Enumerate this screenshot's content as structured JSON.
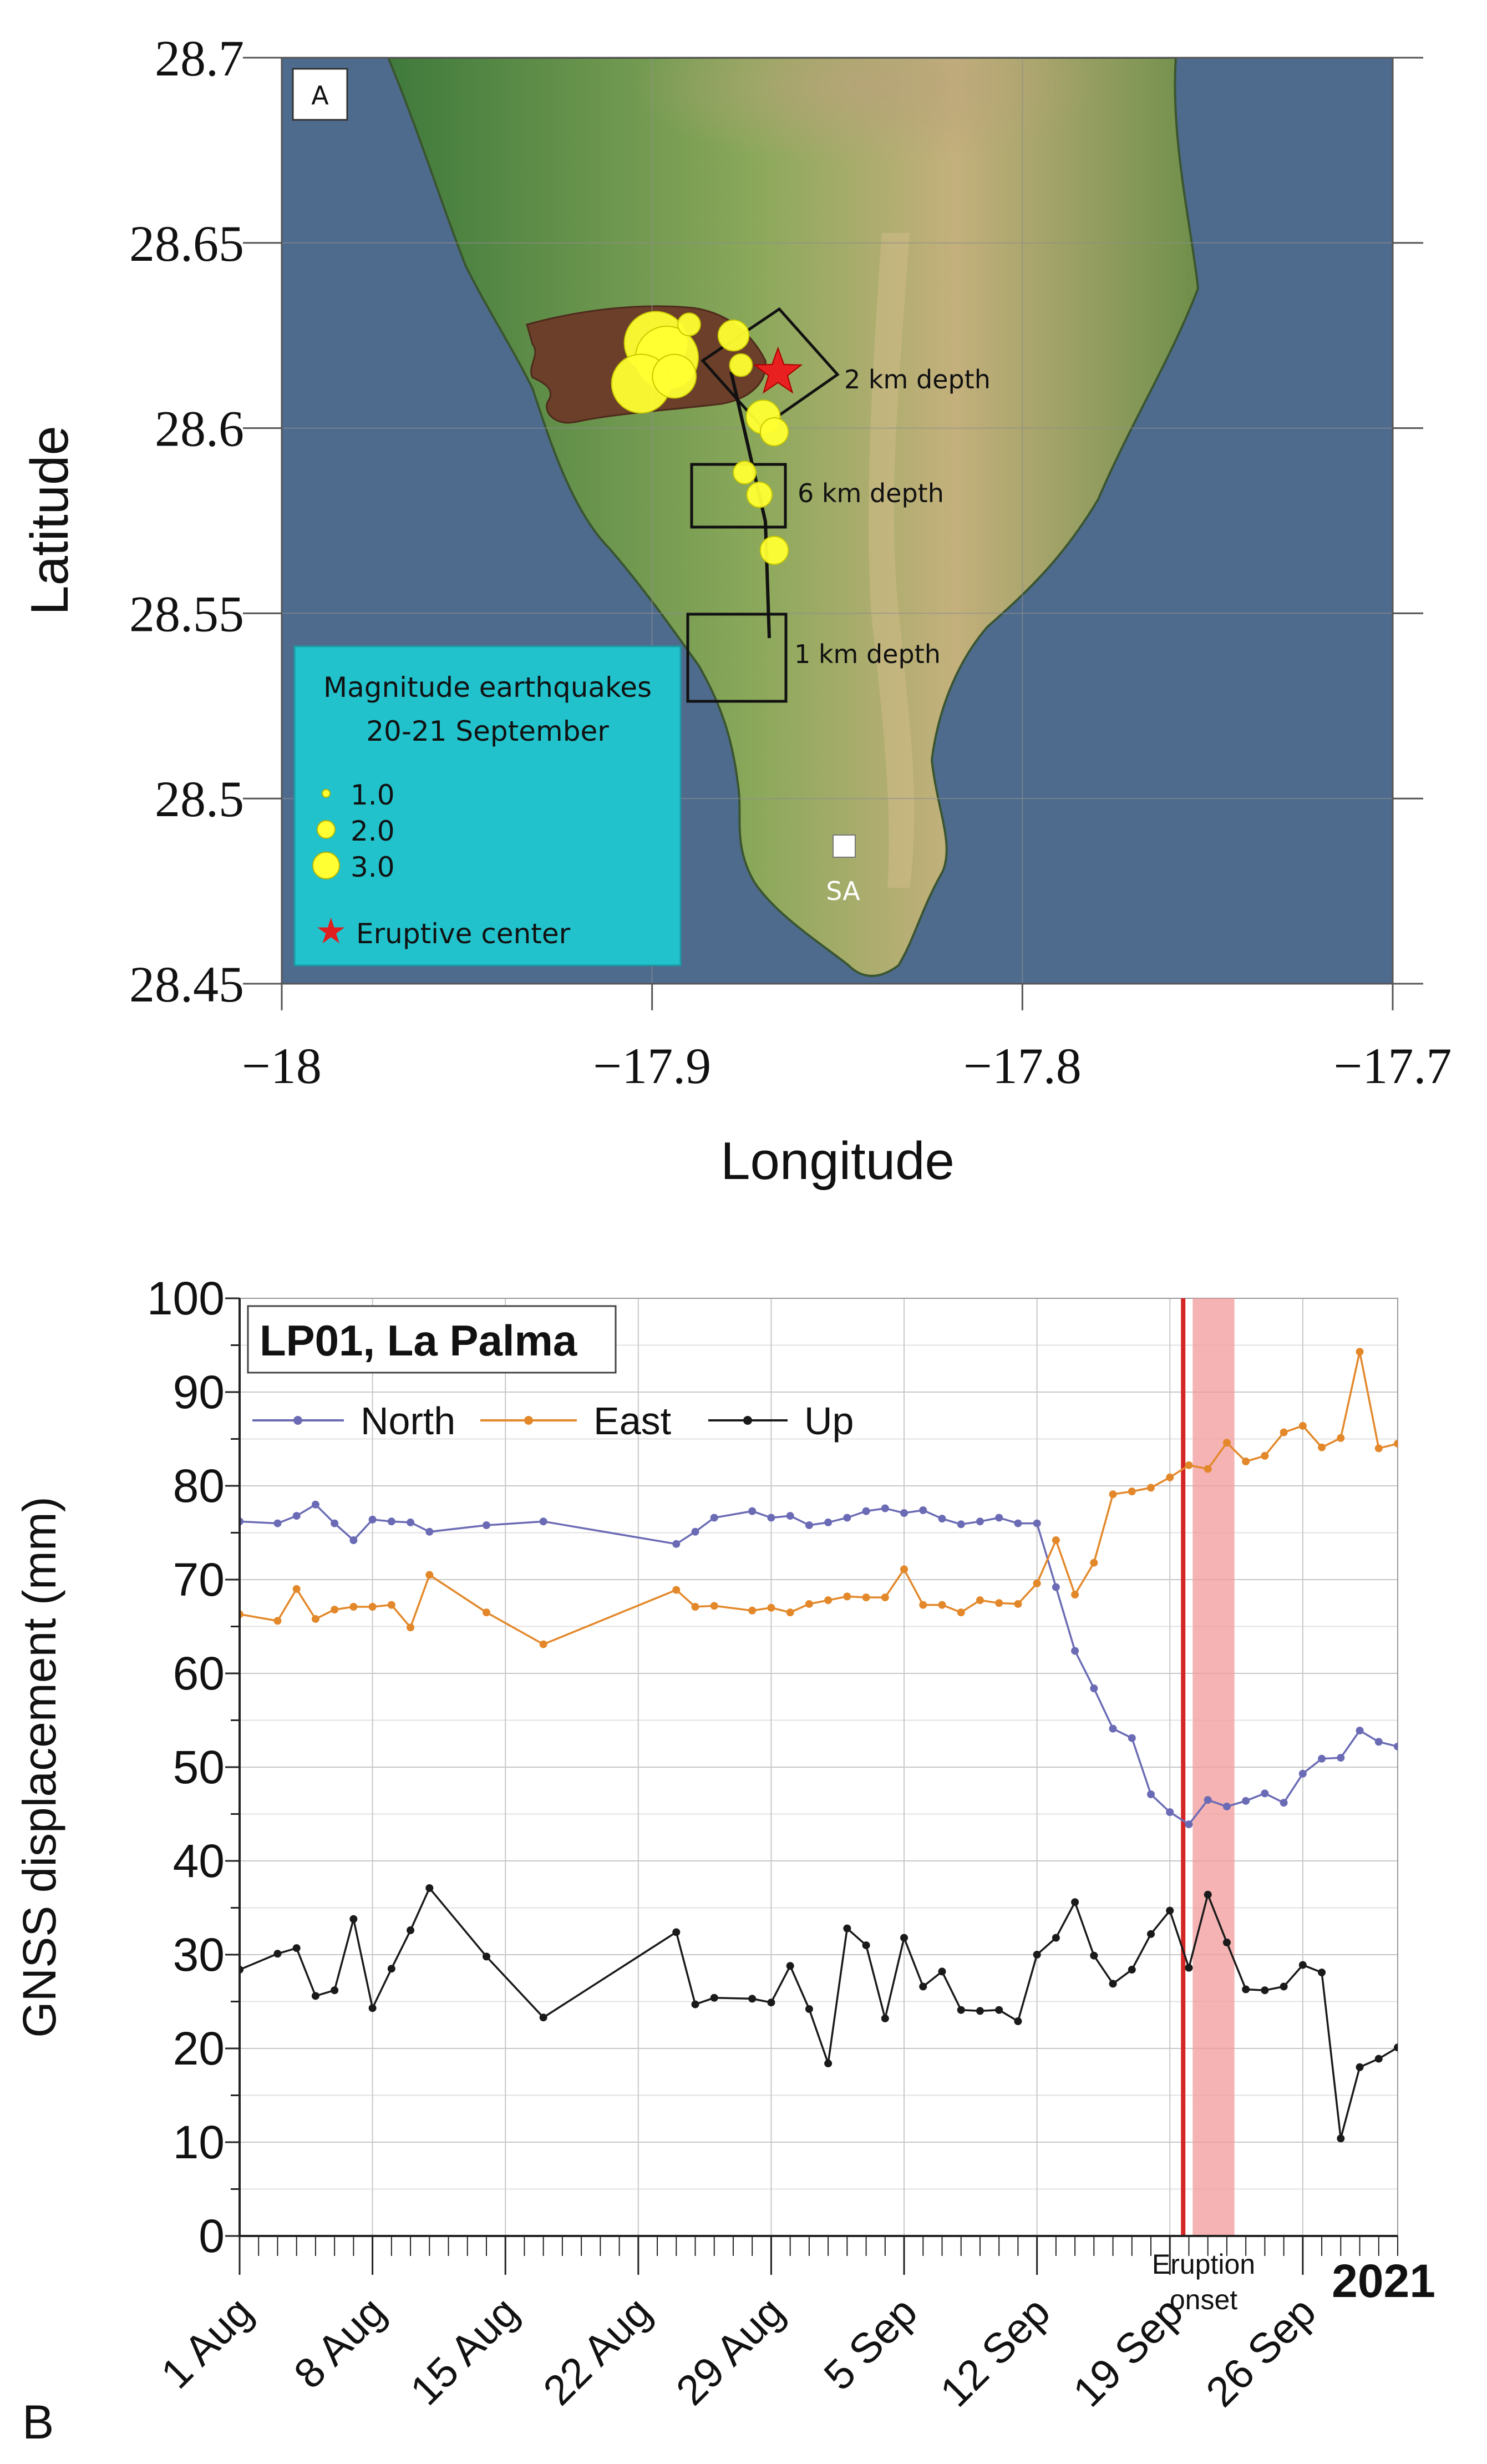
{
  "chart_data": [
    {
      "panel": "A",
      "type": "map",
      "xlabel": "Longitude",
      "ylabel": "Latitude",
      "xlim": [
        -18.0,
        -17.7
      ],
      "ylim": [
        28.45,
        28.7
      ],
      "x_ticks": [
        "−18",
        "−17.9",
        "−17.8",
        "−17.7"
      ],
      "y_ticks": [
        "28.45",
        "28.5",
        "28.55",
        "28.6",
        "28.65",
        "28.7"
      ],
      "eruptive_center": {
        "lon": -17.866,
        "lat": 28.615
      },
      "earthquakes": [
        {
          "lon": -17.899,
          "lat": 28.623,
          "mag": 3.0
        },
        {
          "lon": -17.896,
          "lat": 28.619,
          "mag": 3.0
        },
        {
          "lon": -17.903,
          "lat": 28.612,
          "mag": 2.9
        },
        {
          "lon": -17.894,
          "lat": 28.614,
          "mag": 2.5
        },
        {
          "lon": -17.89,
          "lat": 28.628,
          "mag": 1.8
        },
        {
          "lon": -17.878,
          "lat": 28.625,
          "mag": 2.1
        },
        {
          "lon": -17.876,
          "lat": 28.617,
          "mag": 1.8
        },
        {
          "lon": -17.87,
          "lat": 28.603,
          "mag": 2.2
        },
        {
          "lon": -17.867,
          "lat": 28.599,
          "mag": 2.0
        },
        {
          "lon": -17.875,
          "lat": 28.588,
          "mag": 1.8
        },
        {
          "lon": -17.871,
          "lat": 28.582,
          "mag": 1.9
        },
        {
          "lon": -17.867,
          "lat": 28.567,
          "mag": 2.0
        }
      ],
      "depth_boxes": [
        {
          "label": "2 km depth"
        },
        {
          "label": "6 km depth"
        },
        {
          "label": "1 km depth"
        }
      ],
      "station_label": "SA",
      "legend_title_1": "Magnitude earthquakes",
      "legend_title_2": "20-21 September",
      "legend_mags": [
        "1.0",
        "2.0",
        "3.0"
      ],
      "legend_star_label": "Eruptive center",
      "panel_label": "A"
    },
    {
      "panel": "B",
      "type": "line",
      "title": "LP01, La Palma",
      "ylabel": "GNSS displacement (mm)",
      "ylim": [
        0,
        100
      ],
      "y_ticks": [
        "0",
        "10",
        "20",
        "30",
        "40",
        "50",
        "60",
        "70",
        "80",
        "90",
        "100"
      ],
      "xlim_days": [
        0,
        61
      ],
      "x_tick_days": [
        0,
        7,
        14,
        21,
        28,
        35,
        42,
        49,
        56
      ],
      "x_tick_labels": [
        "1 Aug",
        "8 Aug",
        "15 Aug",
        "22 Aug",
        "29 Aug",
        "5 Sep",
        "12 Sep",
        "19 Sep",
        "26 Sep"
      ],
      "year_label": "2021",
      "eruption_label_1": "Eruption",
      "eruption_label_2": "onset",
      "eruption_day": 49.7,
      "shaded_span_days": [
        50.2,
        52.4
      ],
      "panel_label": "B",
      "series": [
        {
          "name": "North",
          "color": "#6b6bb5",
          "x": [
            0,
            2,
            3,
            4,
            5,
            6,
            7,
            8,
            9,
            10,
            13,
            16,
            23,
            24,
            25,
            27,
            28,
            29,
            30,
            31,
            32,
            33,
            34,
            35,
            36,
            37,
            38,
            39,
            40,
            41,
            42,
            43,
            44,
            45,
            46,
            47,
            48,
            49,
            50,
            51,
            52,
            53,
            54,
            55,
            56,
            57,
            58,
            59,
            60,
            61
          ],
          "values": [
            76.2,
            76.0,
            76.8,
            78.0,
            76.0,
            74.2,
            76.4,
            76.2,
            76.1,
            75.1,
            75.8,
            76.2,
            73.8,
            75.1,
            76.6,
            77.3,
            76.6,
            76.8,
            75.8,
            76.1,
            76.6,
            77.3,
            77.6,
            77.1,
            77.4,
            76.5,
            75.9,
            76.2,
            76.6,
            76.0,
            76.0,
            69.2,
            62.4,
            58.4,
            54.1,
            53.1,
            47.1,
            45.2,
            43.9,
            46.5,
            45.8,
            46.4,
            47.2,
            46.2,
            49.3,
            50.9,
            51.0,
            53.9,
            52.7,
            52.2
          ]
        },
        {
          "name": "East",
          "color": "#e3882a",
          "x": [
            0,
            2,
            3,
            4,
            5,
            6,
            7,
            8,
            9,
            10,
            13,
            16,
            23,
            24,
            25,
            27,
            28,
            29,
            30,
            31,
            32,
            33,
            34,
            35,
            36,
            37,
            38,
            39,
            40,
            41,
            42,
            43,
            44,
            45,
            46,
            47,
            48,
            49,
            50,
            51,
            52,
            53,
            54,
            55,
            56,
            57,
            58,
            59,
            60,
            61
          ],
          "values": [
            66.3,
            65.6,
            69.0,
            65.8,
            66.8,
            67.1,
            67.1,
            67.3,
            64.9,
            70.5,
            66.5,
            63.1,
            68.9,
            67.1,
            67.2,
            66.7,
            67.0,
            66.5,
            67.4,
            67.8,
            68.2,
            68.1,
            68.1,
            71.1,
            67.3,
            67.3,
            66.5,
            67.8,
            67.5,
            67.4,
            69.6,
            74.2,
            68.4,
            71.8,
            79.1,
            79.4,
            79.8,
            80.9,
            82.2,
            81.8,
            84.6,
            82.6,
            83.2,
            85.7,
            86.4,
            84.1,
            85.1,
            94.3,
            84.0,
            84.5
          ]
        },
        {
          "name": "Up",
          "color": "#1a1a1a",
          "x": [
            0,
            2,
            3,
            4,
            5,
            6,
            7,
            8,
            9,
            10,
            13,
            16,
            23,
            24,
            25,
            27,
            28,
            29,
            30,
            31,
            32,
            33,
            34,
            35,
            36,
            37,
            38,
            39,
            40,
            41,
            42,
            43,
            44,
            45,
            46,
            47,
            48,
            49,
            50,
            51,
            52,
            53,
            54,
            55,
            56,
            57,
            58,
            59,
            60,
            61
          ],
          "values": [
            28.4,
            30.1,
            30.7,
            25.6,
            26.2,
            33.8,
            24.3,
            28.5,
            32.6,
            37.1,
            29.8,
            23.3,
            32.4,
            24.7,
            25.4,
            25.3,
            24.9,
            28.8,
            24.2,
            18.4,
            32.8,
            31.0,
            23.2,
            31.8,
            26.6,
            28.2,
            24.1,
            24.0,
            24.1,
            22.9,
            30.0,
            31.8,
            35.6,
            29.9,
            26.9,
            28.4,
            32.2,
            34.7,
            28.6,
            36.4,
            31.3,
            26.3,
            26.2,
            26.6,
            28.9,
            28.1,
            10.4,
            18.0,
            18.9,
            20.1
          ]
        }
      ]
    }
  ]
}
